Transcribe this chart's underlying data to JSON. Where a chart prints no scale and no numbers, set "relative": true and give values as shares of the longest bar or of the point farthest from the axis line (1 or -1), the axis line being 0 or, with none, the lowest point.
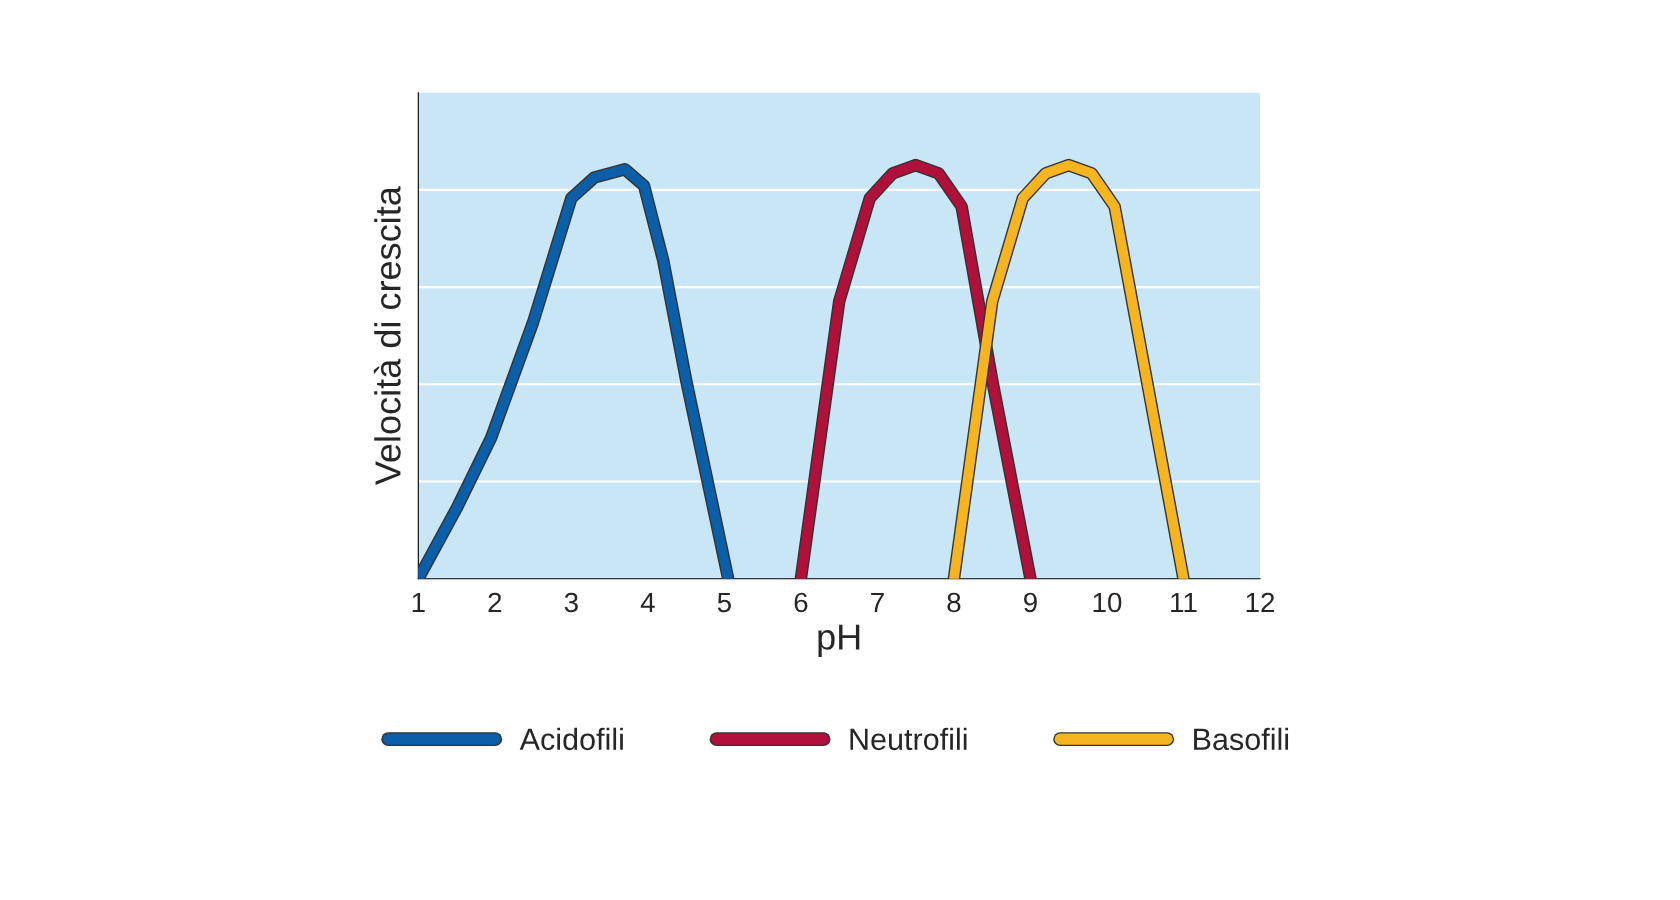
{
  "chart_data": {
    "type": "line",
    "relative": true,
    "xlabel": "pH",
    "ylabel": "Velocità di crescita",
    "xlim": [
      1,
      12
    ],
    "xticks": [
      1,
      2,
      3,
      4,
      5,
      6,
      7,
      8,
      9,
      10,
      11,
      12
    ],
    "grid": "y",
    "legend": "bottom",
    "marker": "none",
    "line_style": "solid",
    "series": [
      {
        "name": "Acidofili",
        "color": "#0b5ea8",
        "x": [
          1,
          1.5,
          1.95,
          2.5,
          3,
          3.3,
          3.7,
          3.95,
          4.2,
          4.5,
          5.05
        ],
        "values": [
          0,
          0.17,
          0.34,
          0.62,
          0.92,
          0.97,
          0.99,
          0.95,
          0.77,
          0.48,
          0
        ]
      },
      {
        "name": "Neutrofili",
        "color": "#b0103a",
        "x": [
          6,
          6.5,
          6.9,
          7.2,
          7.5,
          7.8,
          8.1,
          8.5,
          9
        ],
        "values": [
          0,
          0.67,
          0.92,
          0.98,
          1,
          0.98,
          0.9,
          0.48,
          0
        ]
      },
      {
        "name": "Basofili",
        "color": "#f6b51f",
        "x": [
          8,
          8.5,
          8.9,
          9.2,
          9.5,
          9.8,
          10.1,
          10.5,
          11
        ],
        "values": [
          0,
          0.67,
          0.92,
          0.98,
          1,
          0.98,
          0.9,
          0.5,
          0
        ]
      }
    ]
  }
}
